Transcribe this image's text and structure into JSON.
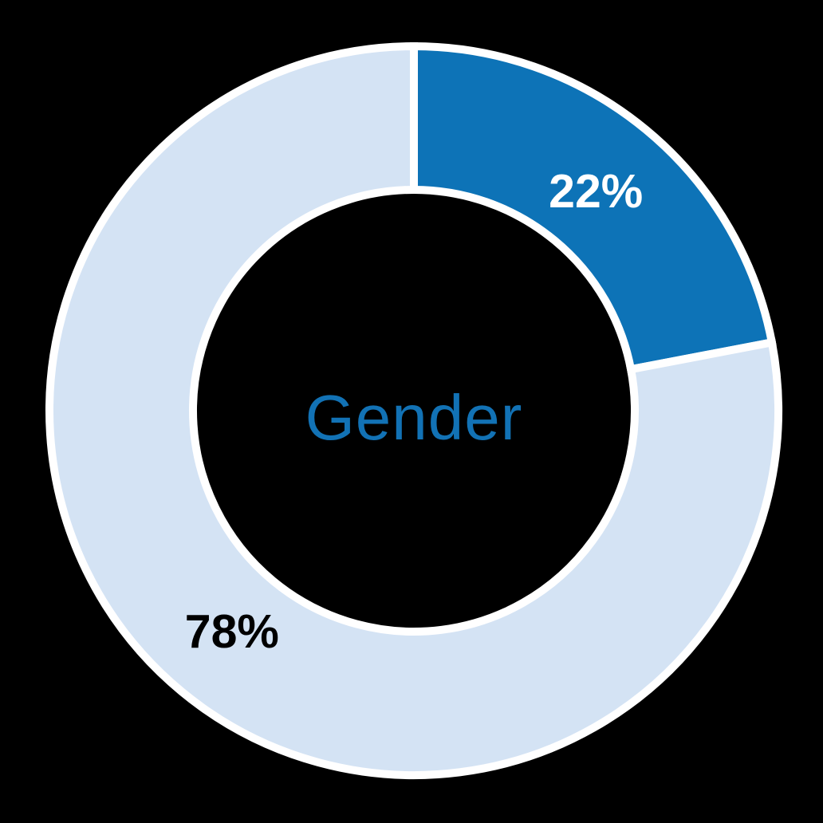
{
  "chart_data": {
    "type": "pie",
    "subtype": "donut",
    "title": "Gender",
    "center_label": "Gender",
    "center_label_color": "#1272b5",
    "background_color": "#000000",
    "stroke_color": "#ffffff",
    "direction": "clockwise",
    "start_angle_deg": 0,
    "slices": [
      {
        "name": "slice-22",
        "value": 22,
        "label": "22%",
        "color": "#0d73b7",
        "label_color": "#ffffff"
      },
      {
        "name": "slice-78",
        "value": 78,
        "label": "78%",
        "color": "#d4e3f4",
        "label_color": "#000000"
      }
    ]
  }
}
